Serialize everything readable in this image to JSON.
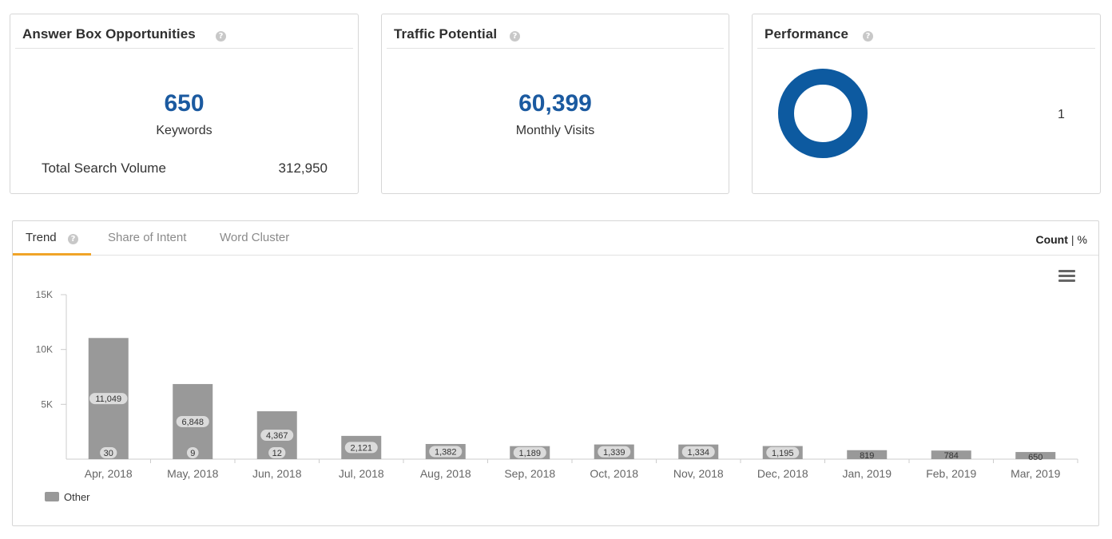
{
  "cards": {
    "answer_box": {
      "title": "Answer Box Opportunities",
      "help": "?",
      "value": "650",
      "value_label": "Keywords",
      "footer_label": "Total Search Volume",
      "footer_value": "312,950"
    },
    "traffic": {
      "title": "Traffic Potential",
      "help": "?",
      "value": "60,399",
      "value_label": "Monthly Visits"
    },
    "performance": {
      "title": "Performance",
      "help": "?",
      "donut_color": "#0d5aa0",
      "value": "1"
    }
  },
  "tabs": [
    {
      "label": "Trend",
      "active": true
    },
    {
      "label": "Share of Intent",
      "active": false
    },
    {
      "label": "Word Cluster",
      "active": false
    }
  ],
  "trend_help": "?",
  "toggle": {
    "count": "Count",
    "sep": "|",
    "percent": "%"
  },
  "menu_icon": "hamburger-menu-icon",
  "legend": {
    "label": "Other",
    "color": "#999999"
  },
  "chart_data": {
    "type": "bar",
    "categories": [
      "Apr, 2018",
      "May, 2018",
      "Jun, 2018",
      "Jul, 2018",
      "Aug, 2018",
      "Sep, 2018",
      "Oct, 2018",
      "Nov, 2018",
      "Dec, 2018",
      "Jan, 2019",
      "Feb, 2019",
      "Mar, 2019"
    ],
    "series": [
      {
        "name": "Other",
        "values": [
          11049,
          6848,
          4367,
          2121,
          1382,
          1189,
          1339,
          1334,
          1195,
          819,
          784,
          650
        ]
      }
    ],
    "value_labels": [
      "11,049",
      "6,848",
      "4,367",
      "2,121",
      "1,382",
      "1,189",
      "1,339",
      "1,334",
      "1,195",
      "819",
      "784",
      "650"
    ],
    "bottom_labels": [
      "30",
      "9",
      "12",
      "",
      "",
      "",
      "",
      "",
      "",
      "",
      "",
      ""
    ],
    "y_ticks": [
      {
        "value": 5000,
        "label": "5K"
      },
      {
        "value": 10000,
        "label": "10K"
      },
      {
        "value": 15000,
        "label": "15K"
      }
    ],
    "ylim": [
      0,
      15000
    ],
    "grid": false,
    "bar_color": "#999999",
    "legend_position": "bottom-left"
  }
}
